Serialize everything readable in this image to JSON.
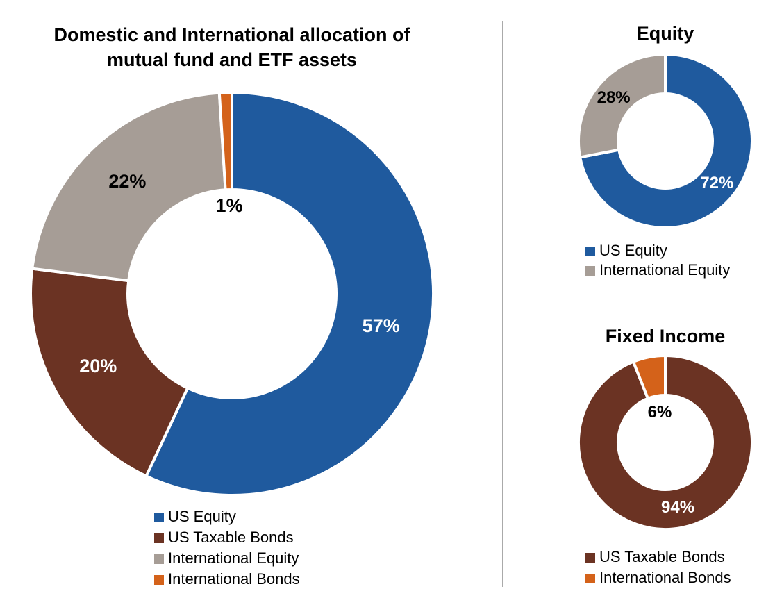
{
  "chart_data": [
    {
      "type": "pie",
      "title": "Domestic and International allocation of mutual fund and ETF assets",
      "categories": [
        "US Equity",
        "US Taxable Bonds",
        "International Equity",
        "International Bonds"
      ],
      "values": [
        57,
        20,
        22,
        1
      ],
      "value_labels": [
        "57%",
        "20%",
        "22%",
        "1%"
      ],
      "colors": [
        "#1f5a9e",
        "#6b3323",
        "#a69d96",
        "#d4621a"
      ]
    },
    {
      "type": "pie",
      "title": "Equity",
      "categories": [
        "US Equity",
        "International Equity"
      ],
      "values": [
        72,
        28
      ],
      "value_labels": [
        "72%",
        "28%"
      ],
      "colors": [
        "#1f5a9e",
        "#a69d96"
      ]
    },
    {
      "type": "pie",
      "title": "Fixed Income",
      "categories": [
        "US Taxable Bonds",
        "International Bonds"
      ],
      "values": [
        94,
        6
      ],
      "value_labels": [
        "94%",
        "6%"
      ],
      "colors": [
        "#6b3323",
        "#d4621a"
      ]
    }
  ]
}
